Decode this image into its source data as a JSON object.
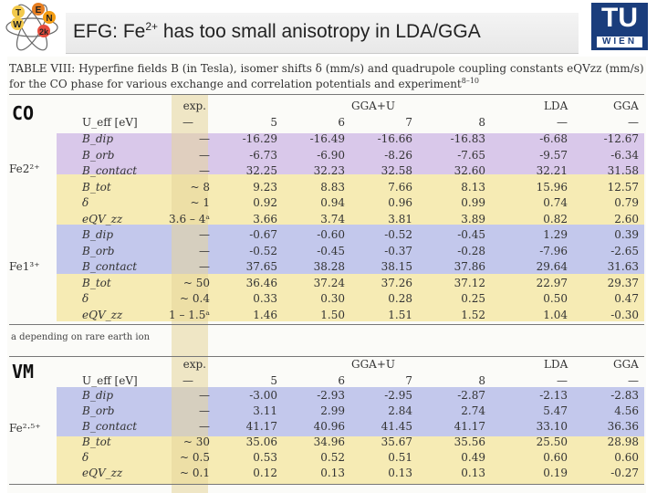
{
  "slide": {
    "title_prefix": "EFG: Fe",
    "title_sup": "2+",
    "title_suffix": " has too small anisotropy in LDA/GGA",
    "logo_letters": [
      "T",
      "E",
      "N",
      "W",
      "2k"
    ],
    "tu_logo": {
      "top": "TU",
      "bottom": "WIEN"
    },
    "caption": "TABLE VIII: Hyperfine fields B (in Tesla), isomer shifts δ (mm/s) and quadrupole coupling constants eQVzz (mm/s) for the CO phase for various exchange and correlation potentials and experiment",
    "caption_ref": "8–10",
    "label_co": "CO",
    "label_vm": "VM",
    "footnote": "a depending on rare earth ion"
  },
  "table_co": {
    "headers": {
      "exp": "exp.",
      "gga_u": "GGA+U",
      "lda": "LDA",
      "gga": "GGA",
      "ueff": "U_eff [eV]",
      "u_values": [
        "5",
        "6",
        "7",
        "8"
      ],
      "dash": "—"
    },
    "groups": [
      "Fe2²⁺",
      "Fe1³⁺"
    ],
    "rows": [
      {
        "label": "B_dip",
        "exp": "—",
        "v": [
          "-16.29",
          "-16.49",
          "-16.66",
          "-16.83",
          "-6.68",
          "-12.67"
        ]
      },
      {
        "label": "B_orb",
        "exp": "—",
        "v": [
          "-6.73",
          "-6.90",
          "-8.26",
          "-7.65",
          "-9.57",
          "-6.34"
        ]
      },
      {
        "label": "B_contact",
        "exp": "—",
        "v": [
          "32.25",
          "32.23",
          "32.58",
          "32.60",
          "32.21",
          "31.58"
        ]
      },
      {
        "label": "B_tot",
        "exp": "~ 8",
        "v": [
          "9.23",
          "8.83",
          "7.66",
          "8.13",
          "15.96",
          "12.57"
        ]
      },
      {
        "label": "δ",
        "exp": "~ 1",
        "v": [
          "0.92",
          "0.94",
          "0.96",
          "0.99",
          "0.74",
          "0.79"
        ]
      },
      {
        "label": "eQV_zz",
        "exp": "3.6 – 4ᵃ",
        "v": [
          "3.66",
          "3.74",
          "3.81",
          "3.89",
          "0.82",
          "2.60"
        ]
      },
      {
        "label": "B_dip",
        "exp": "—",
        "v": [
          "-0.67",
          "-0.60",
          "-0.52",
          "-0.45",
          "1.29",
          "0.39"
        ]
      },
      {
        "label": "B_orb",
        "exp": "—",
        "v": [
          "-0.52",
          "-0.45",
          "-0.37",
          "-0.28",
          "-7.96",
          "-2.65"
        ]
      },
      {
        "label": "B_contact",
        "exp": "—",
        "v": [
          "37.65",
          "38.28",
          "38.15",
          "37.86",
          "29.64",
          "31.63"
        ]
      },
      {
        "label": "B_tot",
        "exp": "~ 50",
        "v": [
          "36.46",
          "37.24",
          "37.26",
          "37.12",
          "22.97",
          "29.37"
        ]
      },
      {
        "label": "δ",
        "exp": "~ 0.4",
        "v": [
          "0.33",
          "0.30",
          "0.28",
          "0.25",
          "0.50",
          "0.47"
        ]
      },
      {
        "label": "eQV_zz",
        "exp": "1 – 1.5ᵃ",
        "v": [
          "1.46",
          "1.50",
          "1.51",
          "1.52",
          "1.04",
          "-0.30"
        ]
      }
    ]
  },
  "table_vm": {
    "headers": {
      "exp": "exp.",
      "gga_u": "GGA+U",
      "lda": "LDA",
      "gga": "GGA",
      "ueff": "U_eff [eV]",
      "u_values": [
        "5",
        "6",
        "7",
        "8"
      ],
      "dash": "—"
    },
    "group": "Fe²·⁵⁺",
    "rows": [
      {
        "label": "B_dip",
        "exp": "—",
        "v": [
          "-3.00",
          "-2.93",
          "-2.95",
          "-2.87",
          "-2.13",
          "-2.83"
        ]
      },
      {
        "label": "B_orb",
        "exp": "—",
        "v": [
          "3.11",
          "2.99",
          "2.84",
          "2.74",
          "5.47",
          "4.56"
        ]
      },
      {
        "label": "B_contact",
        "exp": "—",
        "v": [
          "41.17",
          "40.96",
          "41.45",
          "41.17",
          "33.10",
          "36.36"
        ]
      },
      {
        "label": "B_tot",
        "exp": "~ 30",
        "v": [
          "35.06",
          "34.96",
          "35.67",
          "35.56",
          "25.50",
          "28.98"
        ]
      },
      {
        "label": "δ",
        "exp": "~ 0.5",
        "v": [
          "0.53",
          "0.52",
          "0.51",
          "0.49",
          "0.60",
          "0.60"
        ]
      },
      {
        "label": "eQV_zz",
        "exp": "~ 0.1",
        "v": [
          "0.12",
          "0.13",
          "0.13",
          "0.13",
          "0.19",
          "-0.27"
        ]
      }
    ]
  }
}
